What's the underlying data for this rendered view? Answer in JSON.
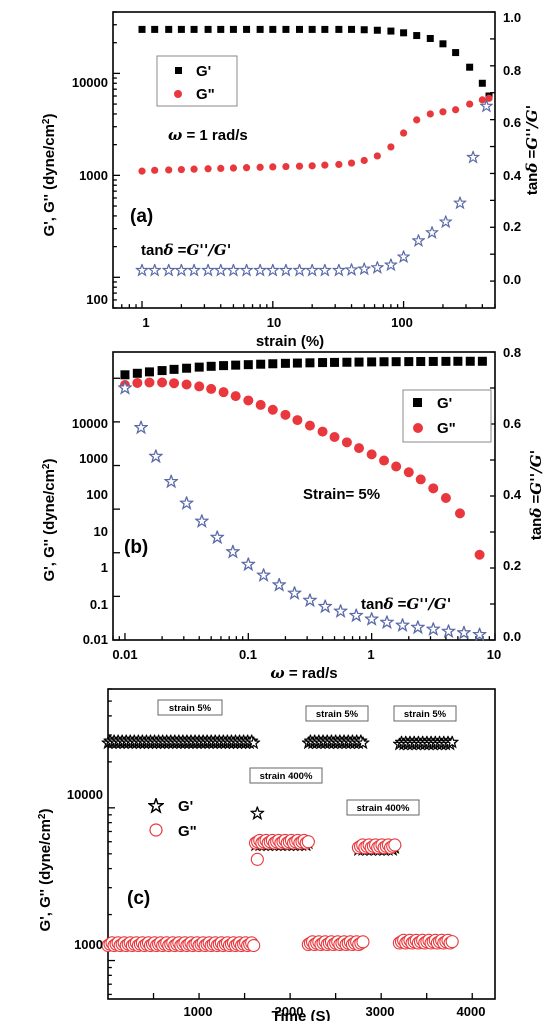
{
  "chart_data": [
    {
      "panel_label": "(a)",
      "type": "scatter",
      "x_scale": "log",
      "y_scale": "log",
      "xlim": [
        0.6,
        500
      ],
      "ylim": [
        50,
        40000
      ],
      "y2lim": [
        -0.1,
        1.0
      ],
      "xlabel": "strain (%)",
      "ylabel": "G', G\" (dyne/cm2)",
      "y2label": "tanδ=G\"/G'",
      "x_ticks": [
        1,
        10,
        100
      ],
      "x_tick_labels": [
        "1",
        "10",
        "100"
      ],
      "y_ticks": [
        100,
        1000,
        10000
      ],
      "y_tick_labels": [
        "100",
        "1000",
        "10000"
      ],
      "y2_ticks": [
        0.0,
        0.2,
        0.4,
        0.6,
        0.8,
        1.0
      ],
      "y2_tick_labels": [
        "0.0",
        "0.2",
        "0.4",
        "0.6",
        "0.8",
        "1.0"
      ],
      "legend_position": "top-left",
      "annotations": [
        "ω = 1 rad/s",
        "tanδ=G\"/G'"
      ],
      "series": [
        {
          "name": "G'",
          "axis": "left",
          "marker": "square",
          "color": "#000000",
          "x": [
            1,
            1.25,
            1.6,
            2,
            2.5,
            3.2,
            4,
            5,
            6.3,
            8,
            10,
            12.6,
            16,
            20,
            25,
            32,
            40,
            50,
            63,
            80,
            100,
            126,
            160,
            200,
            250,
            320,
            400,
            450
          ],
          "y": [
            27000,
            27000,
            27000,
            27000,
            27000,
            27000,
            27000,
            27000,
            27000,
            27000,
            27000,
            27000,
            27000,
            27000,
            27000,
            27000,
            27000,
            26800,
            26500,
            26000,
            25000,
            23500,
            22000,
            19500,
            16000,
            11500,
            8000,
            6000
          ]
        },
        {
          "name": "G\"",
          "axis": "left",
          "marker": "circle",
          "color": "#e8383d",
          "x": [
            1,
            1.25,
            1.6,
            2,
            2.5,
            3.2,
            4,
            5,
            6.3,
            8,
            10,
            12.6,
            16,
            20,
            25,
            32,
            40,
            50,
            63,
            80,
            100,
            126,
            160,
            200,
            250,
            320,
            400,
            450
          ],
          "y": [
            1100,
            1120,
            1130,
            1140,
            1150,
            1160,
            1170,
            1180,
            1190,
            1200,
            1210,
            1220,
            1230,
            1240,
            1260,
            1280,
            1320,
            1400,
            1550,
            1900,
            2600,
            3500,
            4000,
            4200,
            4400,
            5000,
            5500,
            5700
          ]
        },
        {
          "name": "tanδ=G\"/G'",
          "axis": "right",
          "marker": "star",
          "color": "#5a6aa8",
          "x": [
            1,
            1.25,
            1.6,
            2,
            2.5,
            3.2,
            4,
            5,
            6.3,
            8,
            10,
            12.6,
            16,
            20,
            25,
            32,
            40,
            50,
            63,
            80,
            100,
            130,
            165,
            210,
            270,
            340,
            430
          ],
          "y": [
            0.04,
            0.04,
            0.04,
            0.04,
            0.04,
            0.04,
            0.04,
            0.04,
            0.04,
            0.04,
            0.04,
            0.04,
            0.04,
            0.04,
            0.04,
            0.04,
            0.042,
            0.045,
            0.05,
            0.06,
            0.09,
            0.15,
            0.18,
            0.22,
            0.29,
            0.46,
            0.65
          ]
        }
      ]
    },
    {
      "panel_label": "(b)",
      "type": "scatter",
      "x_scale": "log",
      "y_scale": "log",
      "xlim": [
        0.008,
        10
      ],
      "ylim": [
        0.01,
        40000
      ],
      "y2lim": [
        0.0,
        0.8
      ],
      "xlabel": "ω = rad/s",
      "ylabel": "G', G\" (dyne/cm2)",
      "y2label": "tanδ=G\"/G'",
      "x_ticks": [
        0.01,
        0.1,
        1,
        10
      ],
      "x_tick_labels": [
        "0.01",
        "0.1",
        "1",
        "10"
      ],
      "y_ticks": [
        0.01,
        0.1,
        1,
        10,
        100,
        1000,
        10000
      ],
      "y_tick_labels": [
        "0.01",
        "0.1",
        "1",
        "10",
        "100",
        "1000",
        "10000"
      ],
      "y2_ticks": [
        0.0,
        0.2,
        0.4,
        0.6,
        0.8
      ],
      "y2_tick_labels": [
        "0.0",
        "0.2",
        "0.4",
        "0.6",
        "0.8"
      ],
      "legend_position": "top-right",
      "annotations": [
        "Strain= 5%",
        "tanδ=G\"/G'"
      ],
      "series": [
        {
          "name": "G'",
          "axis": "left",
          "marker": "square",
          "color": "#000000",
          "x": [
            0.01,
            0.0126,
            0.0158,
            0.02,
            0.025,
            0.0316,
            0.04,
            0.05,
            0.063,
            0.079,
            0.1,
            0.126,
            0.158,
            0.2,
            0.25,
            0.316,
            0.4,
            0.5,
            0.63,
            0.79,
            1,
            1.26,
            1.58,
            2,
            2.5,
            3.16,
            4,
            5,
            6.3,
            7.9
          ],
          "y": [
            12000,
            13000,
            14000,
            15000,
            16000,
            17000,
            18000,
            18800,
            19500,
            20000,
            20500,
            21000,
            21500,
            22000,
            22300,
            22600,
            22900,
            23100,
            23300,
            23500,
            23700,
            23900,
            24000,
            24100,
            24200,
            24300,
            24400,
            24500,
            24500,
            24500
          ]
        },
        {
          "name": "G\"",
          "axis": "left",
          "marker": "circle",
          "color": "#e8383d",
          "x": [
            0.01,
            0.0126,
            0.0158,
            0.02,
            0.025,
            0.0316,
            0.04,
            0.05,
            0.063,
            0.079,
            0.1,
            0.126,
            0.158,
            0.2,
            0.25,
            0.316,
            0.4,
            0.5,
            0.63,
            0.79,
            1,
            1.26,
            1.58,
            2,
            2.5,
            3.16,
            4,
            5.2,
            7.5
          ],
          "y": [
            7000,
            7800,
            8000,
            8000,
            7700,
            7200,
            6500,
            5700,
            4800,
            3900,
            3100,
            2450,
            1900,
            1450,
            1100,
            820,
            600,
            450,
            340,
            250,
            180,
            130,
            95,
            70,
            48,
            30,
            18,
            8,
            0.9
          ]
        },
        {
          "name": "tanδ=G\"/G'",
          "axis": "right",
          "marker": "star",
          "color": "#5a6aa8",
          "x": [
            0.01,
            0.0135,
            0.0178,
            0.0237,
            0.0316,
            0.042,
            0.056,
            0.075,
            0.1,
            0.133,
            0.178,
            0.237,
            0.316,
            0.42,
            0.56,
            0.75,
            1,
            1.33,
            1.78,
            2.37,
            3.16,
            4.2,
            5.6,
            7.5
          ],
          "y": [
            0.7,
            0.59,
            0.51,
            0.44,
            0.38,
            0.33,
            0.285,
            0.245,
            0.21,
            0.18,
            0.153,
            0.13,
            0.11,
            0.093,
            0.08,
            0.068,
            0.058,
            0.049,
            0.041,
            0.035,
            0.03,
            0.024,
            0.02,
            0.015
          ]
        }
      ]
    },
    {
      "panel_label": "(c)",
      "type": "scatter",
      "x_scale": "linear",
      "y_scale": "log",
      "xlim": [
        0,
        4250
      ],
      "ylim": [
        560,
        60000
      ],
      "xlabel": "Time (S)",
      "ylabel": "G', G\" (dyne/cm2)",
      "x_ticks": [
        1000,
        2000,
        3000,
        4000
      ],
      "x_tick_labels": [
        "1000",
        "2000",
        "3000",
        "4000"
      ],
      "y_ticks": [
        1000,
        10000
      ],
      "y_tick_labels": [
        "1000",
        "10000"
      ],
      "legend_position": "center-left",
      "annotations": [
        "strain 5%",
        "strain 400%",
        "strain 5%",
        "strain 400%",
        "strain 5%"
      ],
      "segments": [
        {
          "condition": "strain 5%",
          "t_start": 0,
          "t_end": 1600,
          "G_prime": 27000,
          "G_double_prime": 1280
        },
        {
          "condition": "strain 400%",
          "t_start": 1620,
          "t_end": 2200,
          "G_prime": 5800,
          "G_double_prime": 6000
        },
        {
          "condition": "strain 5%",
          "t_start": 2200,
          "t_end": 2800,
          "G_prime": 27000,
          "G_double_prime": 1300
        },
        {
          "condition": "strain 400%",
          "t_start": 2750,
          "t_end": 3150,
          "G_prime": 5400,
          "G_double_prime": 5600
        },
        {
          "condition": "strain 5%",
          "t_start": 3200,
          "t_end": 3780,
          "G_prime": 26500,
          "G_double_prime": 1330
        }
      ],
      "series": [
        {
          "name": "G'",
          "marker": "star-open",
          "color": "#000000"
        },
        {
          "name": "G\"",
          "marker": "circle-open",
          "color": "#e8383d"
        }
      ]
    }
  ]
}
